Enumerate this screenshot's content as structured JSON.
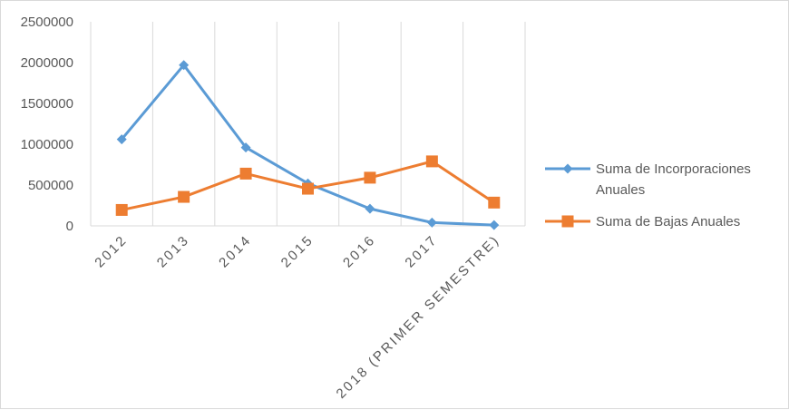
{
  "chart_data": {
    "type": "line",
    "title": "",
    "xlabel": "",
    "ylabel": "",
    "categories": [
      "2012",
      "2013",
      "2014",
      "2015",
      "2016",
      "2017",
      "2018 (PRIMER SEMESTRE)"
    ],
    "ylim": [
      0,
      2500000
    ],
    "yticks": [
      0,
      500000,
      1000000,
      1500000,
      2000000,
      2500000
    ],
    "ytick_labels": [
      "0",
      "500000",
      "1000000",
      "1500000",
      "2000000",
      "2500000"
    ],
    "grid": "vertical",
    "legend_position": "right",
    "series": [
      {
        "name": "Suma de Incorporaciones Anuales",
        "name_lines": [
          "Suma de Incorporaciones",
          "Anuales"
        ],
        "marker": "diamond",
        "color": "#5b9bd5",
        "values": [
          1060000,
          1970000,
          960000,
          520000,
          210000,
          40000,
          10000
        ]
      },
      {
        "name": "Suma de Bajas Anuales",
        "name_lines": [
          "Suma de Bajas Anuales"
        ],
        "marker": "square",
        "color": "#ed7d31",
        "values": [
          195000,
          355000,
          640000,
          455000,
          590000,
          790000,
          285000
        ]
      }
    ]
  }
}
